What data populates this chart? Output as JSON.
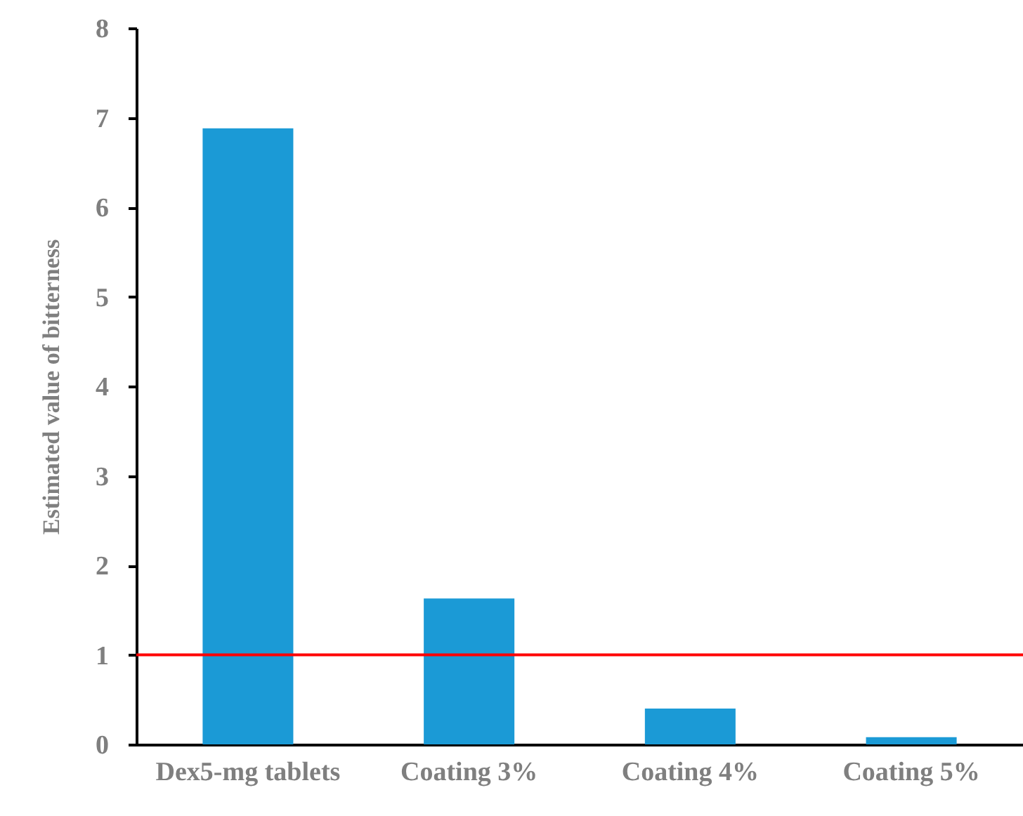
{
  "chart_data": {
    "type": "bar",
    "ylabel": "Estimated  value  of bitterness",
    "categories": [
      "Dex5-mg tablets",
      "Coating 3%",
      "Coating 4%",
      "Coating 5%"
    ],
    "values": [
      6.88,
      1.63,
      0.4,
      0.08
    ],
    "color": "#1b9ad6",
    "ylim": [
      0,
      8
    ],
    "yticks": [
      0,
      1,
      2,
      3,
      4,
      5,
      6,
      7,
      8
    ],
    "grid": false,
    "ref_lines": [
      {
        "axis": "y",
        "value": 1,
        "color": "#ff0000"
      }
    ]
  }
}
